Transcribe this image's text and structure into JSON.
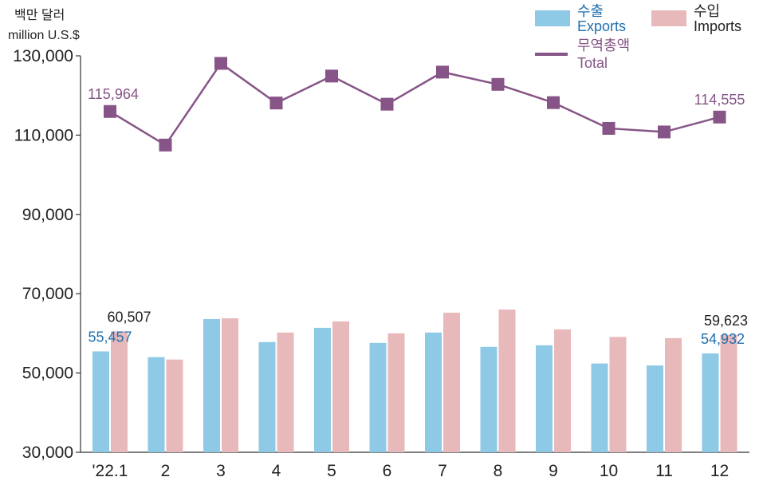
{
  "chart_data": {
    "type": "bar+line",
    "unit_label_ko": "백만 달러",
    "unit_label_en": "million U.S.$",
    "categories": [
      "'22.1",
      "2",
      "3",
      "4",
      "5",
      "6",
      "7",
      "8",
      "9",
      "10",
      "11",
      "12"
    ],
    "series": [
      {
        "name": "Exports",
        "name_ko": "수출",
        "type": "bar",
        "color": "#8ecae6",
        "values": [
          55457,
          54000,
          63600,
          57800,
          61400,
          57600,
          60200,
          56600,
          57000,
          52400,
          51900,
          54932
        ]
      },
      {
        "name": "Imports",
        "name_ko": "수입",
        "type": "bar",
        "color": "#e8b9bb",
        "values": [
          60507,
          53400,
          63800,
          60200,
          63000,
          60000,
          65200,
          66000,
          61000,
          59100,
          58800,
          59623
        ]
      },
      {
        "name": "Total",
        "name_ko": "무역총액",
        "type": "line",
        "color": "#865486",
        "values": [
          115964,
          107500,
          128100,
          118100,
          124900,
          117800,
          125900,
          122800,
          118200,
          111700,
          110800,
          114555
        ]
      }
    ],
    "data_labels": [
      {
        "series": "Exports",
        "index": 0,
        "text": "55,457"
      },
      {
        "series": "Imports",
        "index": 0,
        "text": "60,507"
      },
      {
        "series": "Exports",
        "index": 11,
        "text": "54,932"
      },
      {
        "series": "Imports",
        "index": 11,
        "text": "59,623"
      },
      {
        "series": "Total",
        "index": 0,
        "text": "115,964"
      },
      {
        "series": "Total",
        "index": 11,
        "text": "114,555"
      }
    ],
    "y_ticks": [
      "30,000",
      "50,000",
      "70,000",
      "90,000",
      "110,000",
      "130,000"
    ],
    "y_tick_values": [
      30000,
      50000,
      70000,
      90000,
      110000,
      130000
    ],
    "ylim": [
      30000,
      130000
    ],
    "grid": false,
    "legend_position": "top-right",
    "label_colors": {
      "Exports": "#1f6fae",
      "Imports": "#222222",
      "Total": "#865486"
    }
  }
}
